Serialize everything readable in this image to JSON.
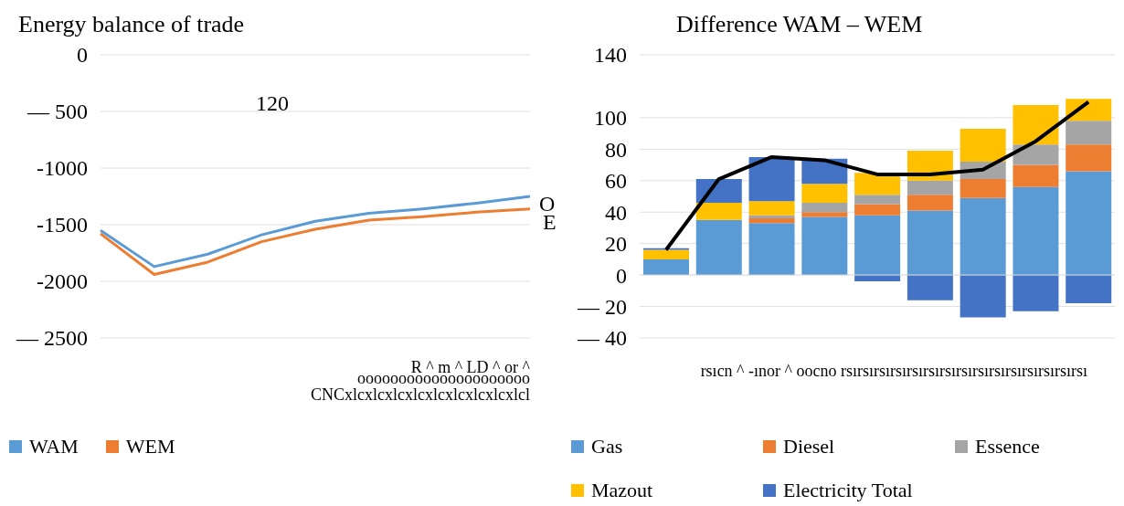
{
  "chart_data": [
    {
      "type": "line",
      "title": "Energy balance of trade",
      "categories": [
        null,
        null,
        null,
        null,
        null,
        null,
        null,
        null,
        null
      ],
      "series": [
        {
          "name": "WAM",
          "color": "#5b9bd5",
          "values": [
            -1550,
            -1870,
            -1760,
            -1590,
            -1470,
            -1400,
            -1360,
            -1310,
            -1250
          ]
        },
        {
          "name": "WEM",
          "color": "#ed7d31",
          "values": [
            -1580,
            -1940,
            -1830,
            -1650,
            -1540,
            -1460,
            -1430,
            -1390,
            -1360
          ]
        }
      ],
      "ylim": [
        -2500,
        0
      ],
      "yticks": [
        0,
        {
          "value": -500,
          "label": "— 500"
        },
        -1000,
        -1500,
        -2000,
        {
          "value": -2500,
          "label": "— 2500"
        }
      ],
      "grid": "y",
      "legend": "bottom left",
      "marker": "none",
      "annotations": [
        "120",
        "R ^ m ^ LD ^ or ^",
        "ooooooooooooooooooooo",
        "CNCxlcxlcxlcxlcxlcxlcxlcxlcxlcl"
      ]
    },
    {
      "type": "bar",
      "title": "Difference WAM – WEM",
      "categories": [
        null,
        null,
        null,
        null,
        null,
        null,
        null,
        null,
        null
      ],
      "stacked": true,
      "series": [
        {
          "name": "Gas",
          "color": "#5b9bd5",
          "values": [
            10,
            35,
            33,
            37,
            38,
            41,
            49,
            56,
            66
          ]
        },
        {
          "name": "Diesel",
          "color": "#ed7d31",
          "values": [
            0,
            0,
            3,
            3,
            7,
            10,
            12,
            14,
            17
          ]
        },
        {
          "name": "Essence",
          "color": "#a5a5a5",
          "values": [
            0,
            0,
            2,
            6,
            6,
            9,
            11,
            13,
            15
          ]
        },
        {
          "name": "Mazout",
          "color": "#ffc000",
          "values": [
            6,
            11,
            9,
            12,
            14,
            19,
            21,
            25,
            14
          ]
        },
        {
          "name": "Electricity Total",
          "color": "#4472c4",
          "values": [
            1,
            15,
            28,
            16,
            -4,
            -16,
            -27,
            -23,
            -18
          ]
        },
        {
          "type": "line",
          "color": "#000000",
          "values": [
            16,
            61,
            75,
            73,
            64,
            64,
            67,
            85,
            110
          ]
        }
      ],
      "ylim": [
        -40,
        140
      ],
      "yticks": [
        {
          "value": -40,
          "label": "— 40"
        },
        {
          "value": -20,
          "label": "— 20"
        },
        0,
        20,
        40,
        60,
        80,
        100,
        140
      ],
      "grid": "y",
      "legend": "bottom",
      "annotations": [
        "O",
        "E",
        "rsıcn ^ -ınor ^ oocno rsırsırsırsırsırsırsırsırsırsırsırsırsırsırsı"
      ]
    }
  ]
}
